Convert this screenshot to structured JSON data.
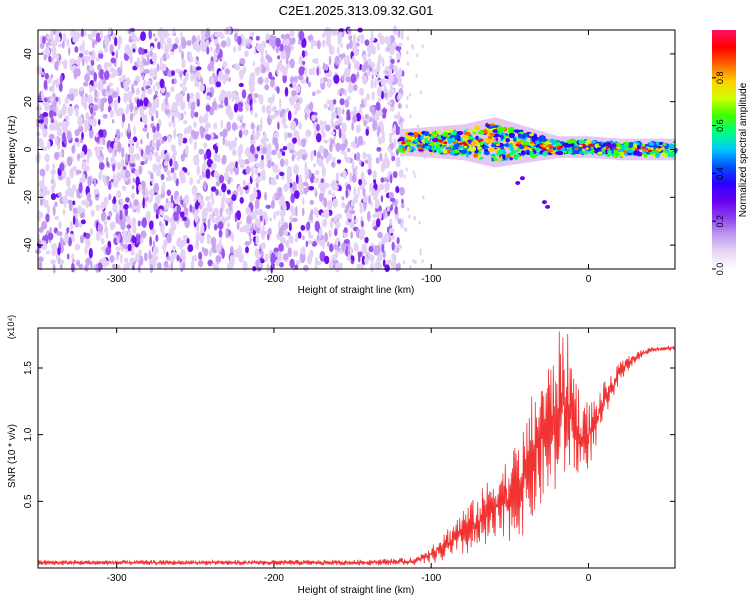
{
  "title": "C2E1.2025.313.09.32.G01",
  "chart_data": [
    {
      "type": "heatmap",
      "title": "C2E1.2025.313.09.32.G01",
      "xlabel": "Height of straight line (km)",
      "ylabel": "Frequency (Hz)",
      "xlim": [
        -350,
        55
      ],
      "ylim": [
        -50,
        50
      ],
      "x_ticks": [
        -300,
        -200,
        -100,
        0
      ],
      "x_tick_labels": [
        "-300",
        "-200",
        "-100",
        "0"
      ],
      "y_ticks": [
        -40,
        -20,
        0,
        20,
        40
      ],
      "y_tick_labels": [
        "-40",
        "-20",
        "0",
        "20",
        "40"
      ],
      "noise_region_x": [
        -350,
        -118
      ],
      "signal_band": [
        {
          "x": -120,
          "center_hz": 3,
          "halfwidth_hz": 4
        },
        {
          "x": -100,
          "center_hz": 3,
          "halfwidth_hz": 5
        },
        {
          "x": -80,
          "center_hz": 3,
          "halfwidth_hz": 6
        },
        {
          "x": -60,
          "center_hz": 3,
          "halfwidth_hz": 9
        },
        {
          "x": -40,
          "center_hz": 2,
          "halfwidth_hz": 6
        },
        {
          "x": -20,
          "center_hz": 1,
          "halfwidth_hz": 3
        },
        {
          "x": 0,
          "center_hz": 1,
          "halfwidth_hz": 3
        },
        {
          "x": 20,
          "center_hz": 0,
          "halfwidth_hz": 3
        },
        {
          "x": 55,
          "center_hz": 0,
          "halfwidth_hz": 3
        }
      ],
      "colorbar": {
        "label": "Normalized spectral amplitude",
        "range": [
          0,
          1
        ],
        "ticks": [
          0.0,
          0.2,
          0.4,
          0.6,
          0.8
        ],
        "tick_labels": [
          "0.0",
          "0.2",
          "0.4",
          "0.6",
          "0.8"
        ],
        "colors": [
          "#ffffff",
          "#e8d6f4",
          "#bf9af0",
          "#8a40f0",
          "#6a00f0",
          "#2a00ff",
          "#0050ff",
          "#00c8ff",
          "#00ff80",
          "#40ff00",
          "#d0ff00",
          "#ffd000",
          "#ff6000",
          "#ff0000",
          "#ff1060"
        ]
      }
    },
    {
      "type": "line",
      "title": "",
      "xlabel": "Height of straight line (km)",
      "ylabel": "SNR (10 * v/v)",
      "y_scale_label": "(x10⁴)",
      "xlim": [
        -350,
        55
      ],
      "ylim": [
        0,
        1.8
      ],
      "x_ticks": [
        -300,
        -200,
        -100,
        0
      ],
      "x_tick_labels": [
        "-300",
        "-200",
        "-100",
        "0"
      ],
      "y_ticks": [
        0.5,
        1.0,
        1.5
      ],
      "y_tick_labels": [
        "0.5",
        "1.0",
        "1.5"
      ],
      "line_color": "#f03232",
      "series": [
        {
          "name": "SNR",
          "x": [
            -350,
            -300,
            -250,
            -200,
            -150,
            -110,
            -100,
            -90,
            -80,
            -70,
            -60,
            -50,
            -40,
            -35,
            -30,
            -25,
            -20,
            -15,
            -10,
            -5,
            0,
            5,
            10,
            15,
            20,
            30,
            40,
            55
          ],
          "envelope_min": [
            0.02,
            0.02,
            0.02,
            0.02,
            0.02,
            0.02,
            0.03,
            0.05,
            0.08,
            0.12,
            0.15,
            0.2,
            0.25,
            0.35,
            0.45,
            0.5,
            0.55,
            0.65,
            0.7,
            0.65,
            0.75,
            0.9,
            1.1,
            1.25,
            1.4,
            1.55,
            1.62,
            1.63
          ],
          "envelope_max": [
            0.06,
            0.06,
            0.06,
            0.06,
            0.06,
            0.08,
            0.18,
            0.3,
            0.45,
            0.55,
            0.75,
            0.85,
            1.1,
            1.35,
            1.5,
            1.55,
            1.75,
            1.85,
            1.6,
            1.3,
            1.25,
            1.3,
            1.4,
            1.45,
            1.55,
            1.62,
            1.66,
            1.67
          ]
        }
      ]
    }
  ]
}
